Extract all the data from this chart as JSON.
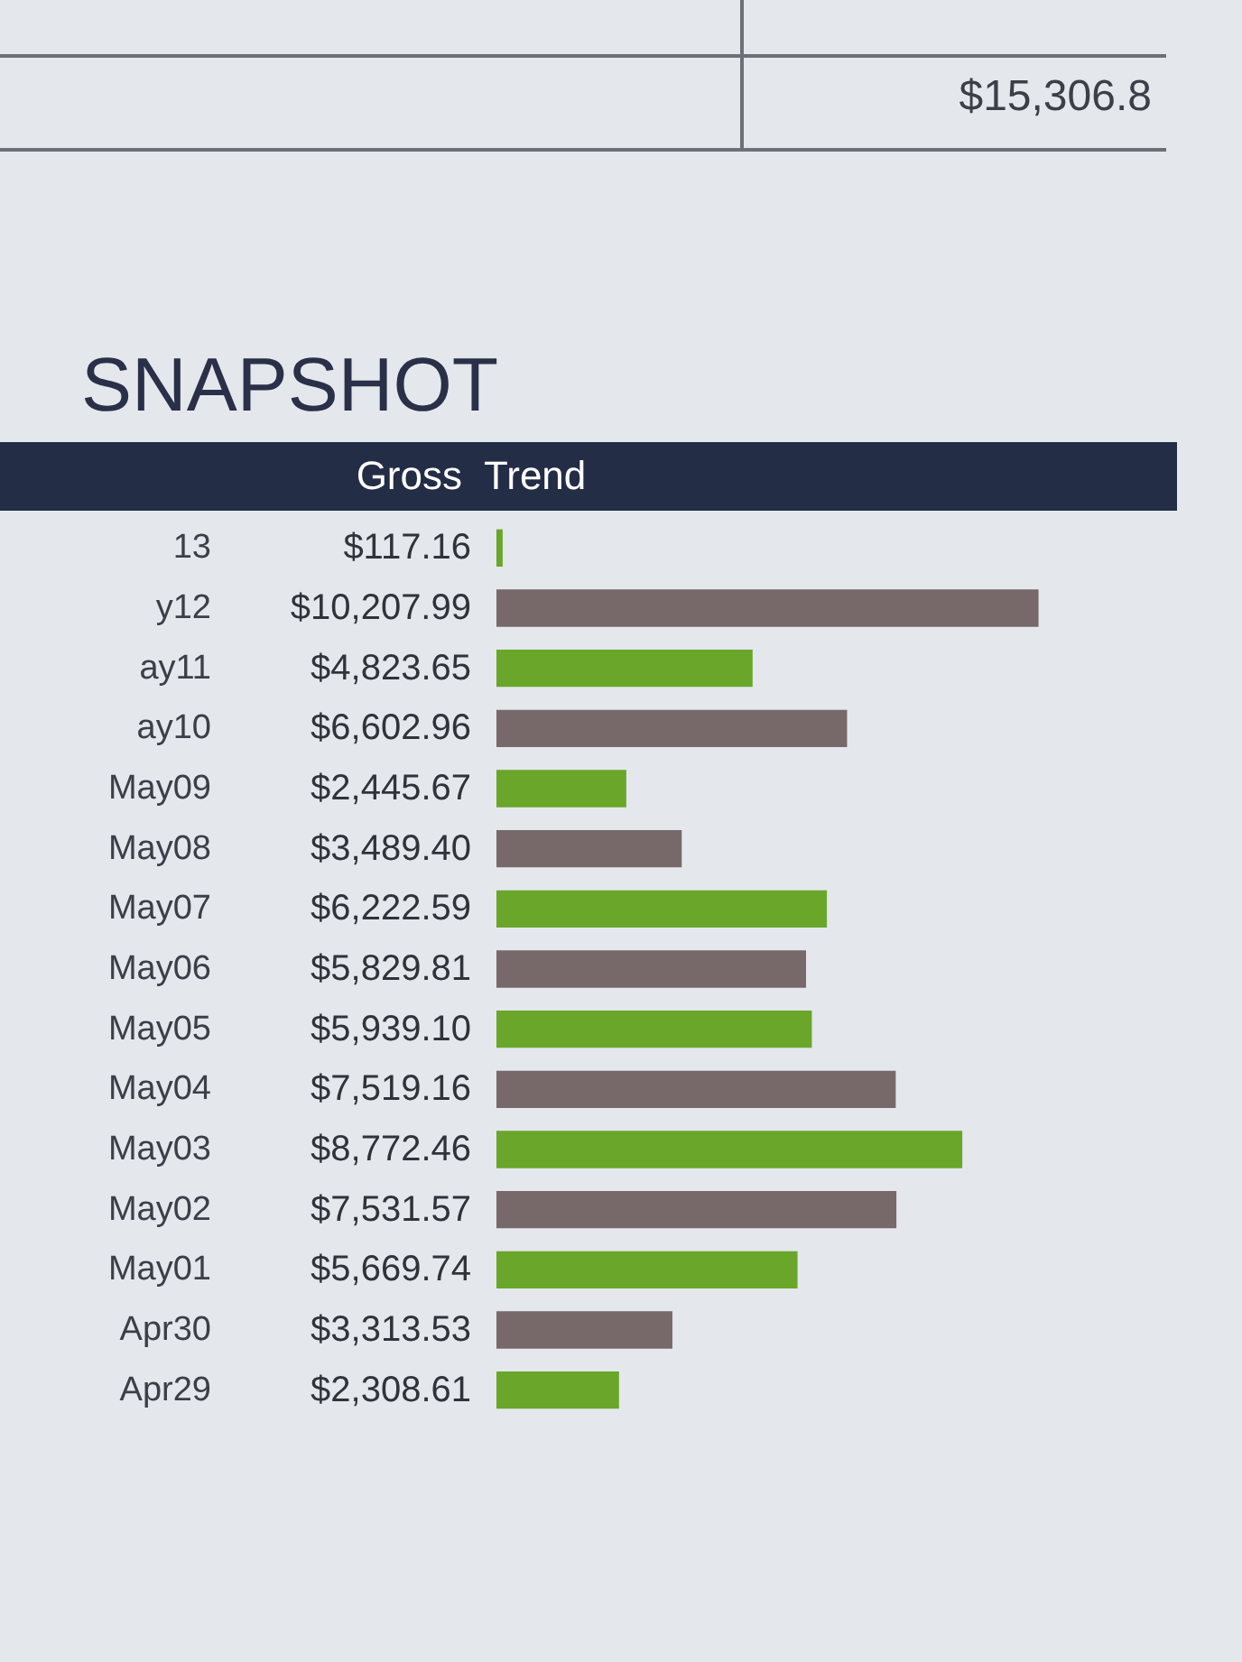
{
  "chart_data": {
    "type": "bar",
    "orientation": "horizontal",
    "title": "SNAPSHOT",
    "xlabel": "Trend",
    "annotations": [
      "$15,306.8",
      "Gross"
    ],
    "categories": [
      "13",
      "y12",
      "ay11",
      "ay10",
      "May09",
      "May08",
      "May07",
      "May06",
      "May05",
      "May04",
      "May03",
      "May02",
      "May01",
      "Apr30",
      "Apr29"
    ],
    "values": [
      117.16,
      10207.99,
      4823.65,
      6602.96,
      2445.67,
      3489.4,
      6222.59,
      5829.81,
      5939.1,
      7519.16,
      8772.46,
      7531.57,
      5669.74,
      3313.53,
      2308.61
    ],
    "colors": [
      "#6aa62a",
      "#77696a",
      "#6aa62a",
      "#77696a",
      "#6aa62a",
      "#77696a",
      "#6aa62a",
      "#77696a",
      "#6aa62a",
      "#77696a",
      "#6aa62a",
      "#77696a",
      "#6aa62a",
      "#77696a",
      "#6aa62a"
    ],
    "value_labels": [
      "$117.16",
      "$10,207.99",
      "$4,823.65",
      "$6,602.96",
      "$2,445.67",
      "$3,489.40",
      "$6,222.59",
      "$5,829.81",
      "$5,939.10",
      "$7,519.16",
      "$8,772.46",
      "$7,531.57",
      "$5,669.74",
      "$3,313.53",
      "$2,308.61"
    ],
    "tick_labels": "y"
  }
}
